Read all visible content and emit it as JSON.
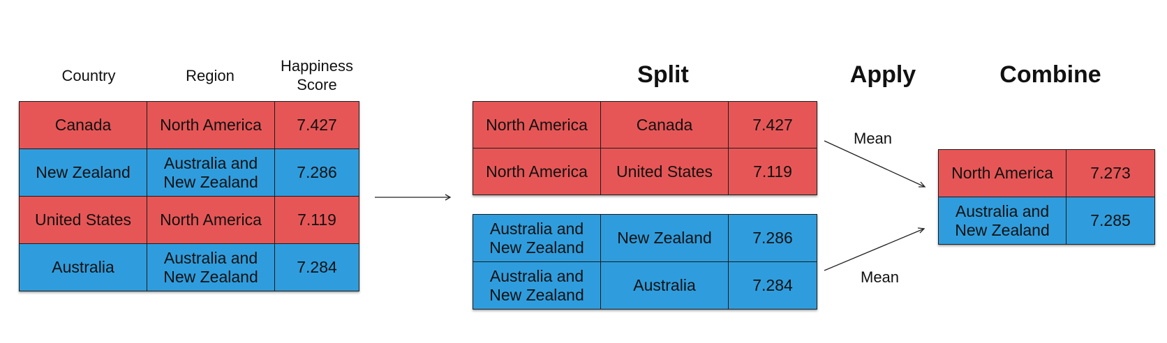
{
  "source_table": {
    "headers": [
      "Country",
      "Region",
      "Happiness\nScore"
    ],
    "rows": [
      {
        "country": "Canada",
        "region": "North America",
        "score": "7.427",
        "color": "red"
      },
      {
        "country": "New Zealand",
        "region": "Australia and\nNew Zealand",
        "score": "7.286",
        "color": "blue"
      },
      {
        "country": "United States",
        "region": "North America",
        "score": "7.119",
        "color": "red"
      },
      {
        "country": "Australia",
        "region": "Australia and\nNew Zealand",
        "score": "7.284",
        "color": "blue"
      }
    ]
  },
  "steps": {
    "split": "Split",
    "apply": "Apply",
    "combine": "Combine"
  },
  "split_groups": [
    {
      "color": "red",
      "rows": [
        {
          "region": "North America",
          "country": "Canada",
          "score": "7.427"
        },
        {
          "region": "North America",
          "country": "United States",
          "score": "7.119"
        }
      ]
    },
    {
      "color": "blue",
      "rows": [
        {
          "region": "Australia and\nNew Zealand",
          "country": "New Zealand",
          "score": "7.286"
        },
        {
          "region": "Australia and\nNew Zealand",
          "country": "Australia",
          "score": "7.284"
        }
      ]
    }
  ],
  "apply_labels": [
    "Mean",
    "Mean"
  ],
  "combined": [
    {
      "region": "North America",
      "score": "7.273",
      "color": "red"
    },
    {
      "region": "Australia and\nNew Zealand",
      "score": "7.285",
      "color": "blue"
    }
  ],
  "colors": {
    "red": "#e75656",
    "blue": "#2f9ddd"
  }
}
